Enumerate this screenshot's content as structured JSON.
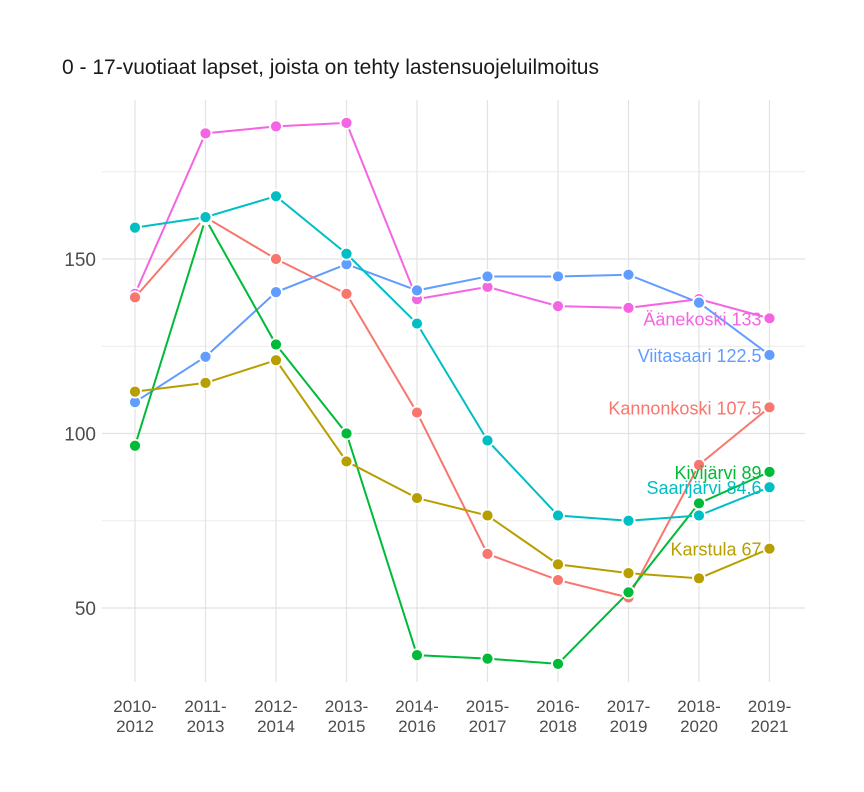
{
  "chart_data": {
    "type": "line",
    "title": "0 - 17-vuotiaat lapset, joista on tehty lastensuojeluilmoitus",
    "xlabel": "",
    "ylabel": "",
    "categories": [
      "2010-\n2012",
      "2011-\n2013",
      "2012-\n2014",
      "2013-\n2015",
      "2014-\n2016",
      "2015-\n2017",
      "2016-\n2018",
      "2017-\n2019",
      "2018-\n2020",
      "2019-\n2021"
    ],
    "y_ticks": [
      50,
      100,
      150
    ],
    "ylim": [
      30,
      195
    ],
    "grid": true,
    "legend": "none (labels at line ends)",
    "series": [
      {
        "name": "Äänekoski",
        "end_label": "Äänekoski 133",
        "color": "#F564E3",
        "values": [
          140,
          186,
          188,
          189,
          138.5,
          142,
          136.5,
          136,
          138.5,
          133
        ]
      },
      {
        "name": "Viitasaari",
        "end_label": "Viitasaari 122.5",
        "color": "#619CFF",
        "values": [
          109,
          122,
          140.5,
          148.5,
          141,
          145,
          145,
          145.5,
          137.5,
          122.5
        ]
      },
      {
        "name": "Kannonkoski",
        "end_label": "Kannonkoski 107.5",
        "color": "#F8766D",
        "values": [
          139,
          162,
          150,
          140,
          106,
          65.5,
          58,
          53,
          91,
          107.5
        ]
      },
      {
        "name": "Kivijärvi",
        "end_label": "Kivijärvi 89",
        "color": "#00BA38",
        "values": [
          96.5,
          161.5,
          125.5,
          100,
          36.5,
          35.5,
          34,
          54.5,
          80,
          89
        ]
      },
      {
        "name": "Saarijärvi",
        "end_label": "Saarijärvi 84.6",
        "color": "#00BFC4",
        "values": [
          159,
          162,
          168,
          151.5,
          131.5,
          98,
          76.5,
          75,
          76.5,
          84.6
        ]
      },
      {
        "name": "Karstula",
        "end_label": "Karstula 67",
        "color": "#B79F00",
        "values": [
          112,
          114.5,
          121,
          92,
          81.5,
          76.5,
          62.5,
          60,
          58.5,
          67
        ]
      }
    ]
  }
}
